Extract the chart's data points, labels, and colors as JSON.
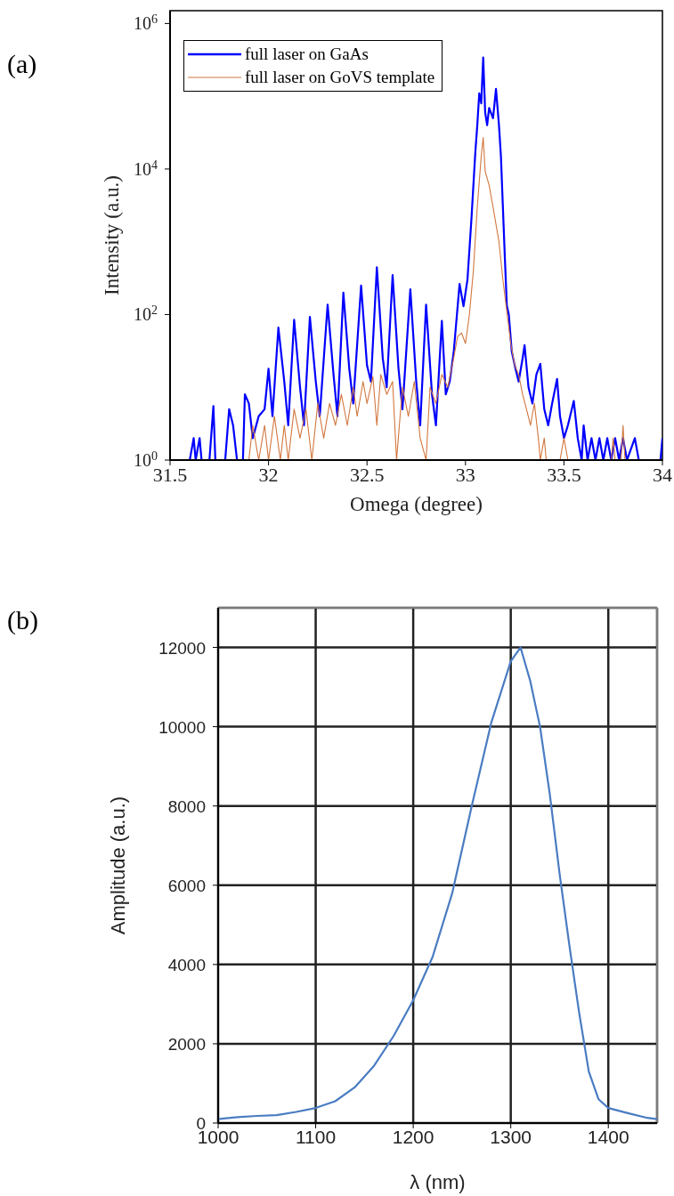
{
  "chart_data": [
    {
      "type": "line",
      "xlabel": "Omega (degree)",
      "ylabel": "Intensity (a.u.)",
      "annotations": [
        "(a)"
      ],
      "log": "y",
      "legend": "top left",
      "grid": false,
      "xlim": [
        31.5,
        34
      ],
      "xticks": [
        31.5,
        32,
        32.5,
        33,
        33.5,
        34
      ],
      "ylim": [
        1,
        1500000
      ],
      "yticks": [
        {
          "value": 1,
          "label": "10$^{0}$"
        },
        {
          "value": 100,
          "label": "10$^{2}$"
        },
        {
          "value": 10000,
          "label": "10$^{4}$"
        },
        {
          "value": 1000000,
          "label": "10$^{6}$"
        }
      ],
      "series": [
        {
          "name": "full laser on GaAs",
          "color": "#0000ff",
          "x": [
            31.6,
            31.62,
            31.63,
            31.65,
            31.66,
            31.7,
            31.72,
            31.73,
            31.78,
            31.8,
            31.82,
            31.84,
            31.87,
            31.88,
            31.9,
            31.92,
            31.95,
            31.98,
            32.0,
            32.02,
            32.05,
            32.08,
            32.1,
            32.13,
            32.16,
            32.18,
            32.21,
            32.24,
            32.26,
            32.3,
            32.33,
            32.35,
            32.38,
            32.41,
            32.43,
            32.47,
            32.5,
            32.52,
            32.55,
            32.58,
            32.6,
            32.63,
            32.66,
            32.68,
            32.72,
            32.75,
            32.77,
            32.8,
            32.83,
            32.85,
            32.88,
            32.9,
            32.92,
            32.94,
            32.97,
            32.99,
            33.01,
            33.03,
            33.05,
            33.06,
            33.07,
            33.08,
            33.09,
            33.1,
            33.11,
            33.12,
            33.14,
            33.155,
            33.17,
            33.18,
            33.19,
            33.2,
            33.21,
            33.22,
            33.235,
            33.25,
            33.27,
            33.29,
            33.3,
            33.32,
            33.34,
            33.36,
            33.38,
            33.4,
            33.42,
            33.44,
            33.465,
            33.48,
            33.5,
            33.52,
            33.55,
            33.57,
            33.59,
            33.6,
            33.62,
            33.64,
            33.66,
            33.68,
            33.7,
            33.72,
            33.74,
            33.76,
            33.78,
            33.8,
            33.82,
            33.86,
            33.88,
            33.99,
            34.0
          ],
          "values": [
            1,
            2,
            1,
            2,
            1,
            1,
            5.5,
            1,
            1,
            5,
            3,
            1,
            1,
            8,
            6,
            2,
            4,
            5,
            18,
            4,
            66,
            12,
            3,
            85,
            10,
            3,
            93,
            12,
            4,
            137,
            15,
            4,
            200,
            18,
            6,
            250,
            20,
            12,
            445,
            25,
            10,
            350,
            18,
            5,
            222,
            12,
            3,
            137,
            8,
            3,
            82,
            8,
            12,
            30,
            263,
            130,
            300,
            2000,
            17000,
            40000,
            110000,
            80000,
            340000,
            60000,
            40000,
            69000,
            50000,
            126000,
            40000,
            15000,
            3000,
            600,
            132,
            100,
            31,
            20,
            12,
            25,
            38,
            10,
            6,
            15,
            21,
            5,
            3,
            6,
            13,
            4,
            2,
            3,
            6.5,
            2,
            1,
            3,
            1,
            2,
            1,
            2,
            1,
            2,
            1,
            2,
            1,
            2,
            1,
            2,
            1,
            1,
            2
          ]
        },
        {
          "name": "full laser on GoVS template",
          "color": "#d2773f",
          "x": [
            31.9,
            31.92,
            31.95,
            31.98,
            32.0,
            32.03,
            32.06,
            32.08,
            32.1,
            32.13,
            32.16,
            32.19,
            32.22,
            32.25,
            32.28,
            32.31,
            32.34,
            32.37,
            32.4,
            32.43,
            32.45,
            32.48,
            32.5,
            32.53,
            32.55,
            32.57,
            32.6,
            32.63,
            32.65,
            32.68,
            32.71,
            32.74,
            32.77,
            32.8,
            32.82,
            32.85,
            32.88,
            32.91,
            32.94,
            32.96,
            32.98,
            33.0,
            33.02,
            33.04,
            33.06,
            33.08,
            33.09,
            33.1,
            33.12,
            33.14,
            33.17,
            33.19,
            33.21,
            33.23,
            33.25,
            33.27,
            33.29,
            33.31,
            33.33,
            33.35,
            33.37,
            33.38,
            33.4,
            33.41,
            33.48,
            33.5,
            33.52,
            33.74,
            33.75,
            33.76,
            33.79,
            33.8,
            33.81
          ],
          "values": [
            1,
            3,
            1,
            3,
            1,
            4,
            1,
            3,
            1,
            5,
            2,
            5,
            1,
            6,
            2,
            6,
            3,
            8,
            3,
            10,
            4,
            12,
            6,
            14,
            3,
            15,
            8,
            12,
            1,
            10,
            4,
            12,
            2,
            1,
            10,
            6,
            15,
            10,
            25,
            50,
            56,
            40,
            100,
            400,
            3000,
            15000,
            27000,
            9300,
            6000,
            3000,
            1000,
            300,
            110,
            40,
            20,
            15,
            8,
            5,
            3,
            6,
            2,
            1,
            2,
            1,
            1,
            2,
            1,
            1,
            2,
            1,
            1,
            3,
            1
          ]
        }
      ]
    },
    {
      "type": "line",
      "xlabel": "λ (nm)",
      "ylabel": "Amplitude (a.u.)",
      "annotations": [
        "(b)"
      ],
      "grid": true,
      "legend": false,
      "xlim": [
        1000,
        1450
      ],
      "xticks": [
        1000,
        1100,
        1200,
        1300,
        1400
      ],
      "ylim": [
        0,
        13000
      ],
      "yticks": [
        0,
        2000,
        4000,
        6000,
        8000,
        10000,
        12000
      ],
      "series": [
        {
          "color": "#4a7cc2",
          "x": [
            1000,
            1020,
            1040,
            1060,
            1080,
            1100,
            1120,
            1140,
            1160,
            1180,
            1200,
            1220,
            1240,
            1260,
            1280,
            1300,
            1310,
            1320,
            1330,
            1340,
            1350,
            1360,
            1370,
            1380,
            1390,
            1400,
            1420,
            1440,
            1450
          ],
          "values": [
            100,
            150,
            180,
            200,
            280,
            380,
            550,
            900,
            1450,
            2200,
            3100,
            4200,
            5800,
            8000,
            10100,
            11650,
            12000,
            11150,
            10000,
            8300,
            6300,
            4500,
            2800,
            1300,
            600,
            380,
            250,
            130,
            100
          ]
        }
      ]
    }
  ]
}
